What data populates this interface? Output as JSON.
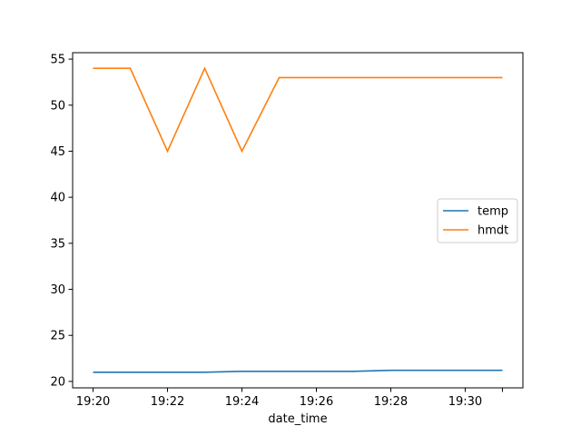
{
  "chart_data": {
    "type": "line",
    "title": "",
    "xlabel": "date_time",
    "ylabel": "",
    "x": [
      "19:20",
      "19:21",
      "19:22",
      "19:23",
      "19:24",
      "19:25",
      "19:26",
      "19:27",
      "19:28",
      "19:29",
      "19:30",
      "19:31"
    ],
    "x_tick_labels": [
      "19:20",
      "19:22",
      "19:24",
      "19:26",
      "19:28",
      "19:30"
    ],
    "y_tick_labels": [
      "20",
      "25",
      "30",
      "35",
      "40",
      "45",
      "50",
      "55"
    ],
    "ylim": [
      19.3,
      55.7
    ],
    "grid": false,
    "legend_position": "center-right",
    "series": [
      {
        "name": "temp",
        "color": "#1f77b4",
        "values": [
          21.0,
          21.0,
          21.0,
          21.0,
          21.1,
          21.1,
          21.1,
          21.1,
          21.2,
          21.2,
          21.2,
          21.2
        ]
      },
      {
        "name": "hmdt",
        "color": "#ff7f0e",
        "values": [
          54,
          54,
          45,
          54,
          45,
          53,
          53,
          53,
          53,
          53,
          53,
          53
        ]
      }
    ]
  }
}
